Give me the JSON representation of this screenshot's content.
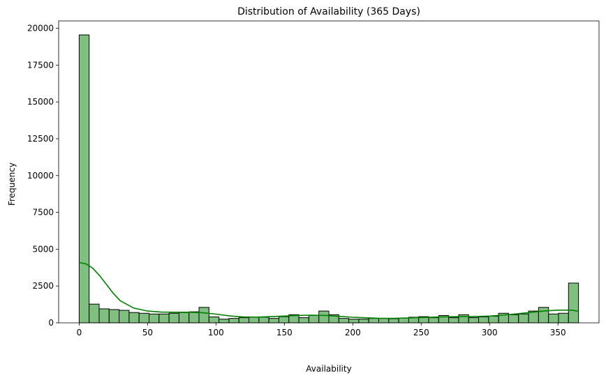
{
  "chart_data": {
    "type": "histogram",
    "title": "Distribution of Availability (365 Days)",
    "xlabel": "Availability",
    "ylabel": "Frequency",
    "xlim": [
      -15,
      380
    ],
    "ylim": [
      0,
      20500
    ],
    "xticks": [
      0,
      50,
      100,
      150,
      200,
      250,
      300,
      350
    ],
    "yticks": [
      0,
      2500,
      5000,
      7500,
      10000,
      12500,
      15000,
      17500,
      20000
    ],
    "bin_width": 7.3,
    "bin_start": 0,
    "values": [
      19550,
      1270,
      950,
      900,
      850,
      700,
      650,
      600,
      600,
      650,
      700,
      750,
      1050,
      400,
      250,
      300,
      350,
      400,
      380,
      300,
      420,
      550,
      350,
      500,
      800,
      550,
      300,
      250,
      250,
      300,
      300,
      280,
      320,
      380,
      420,
      350,
      500,
      350,
      550,
      350,
      400,
      450,
      650,
      550,
      600,
      800,
      1050,
      600,
      650,
      2700
    ],
    "kde": {
      "x": [
        0,
        5,
        10,
        15,
        20,
        25,
        30,
        40,
        50,
        60,
        70,
        80,
        90,
        100,
        110,
        120,
        130,
        140,
        150,
        160,
        170,
        180,
        190,
        200,
        210,
        220,
        230,
        240,
        250,
        260,
        270,
        280,
        290,
        300,
        310,
        320,
        330,
        340,
        350,
        360,
        365
      ],
      "y": [
        4100,
        4000,
        3700,
        3200,
        2600,
        2000,
        1500,
        1000,
        800,
        730,
        720,
        720,
        690,
        590,
        470,
        400,
        390,
        420,
        460,
        500,
        520,
        500,
        440,
        380,
        340,
        310,
        310,
        330,
        360,
        390,
        410,
        420,
        430,
        460,
        520,
        610,
        710,
        800,
        860,
        860,
        780
      ]
    },
    "colors": {
      "bar_fill": "#7fbf7f",
      "bar_edge": "#000000",
      "kde_line": "#008000"
    },
    "grid": false,
    "legend": "none"
  }
}
